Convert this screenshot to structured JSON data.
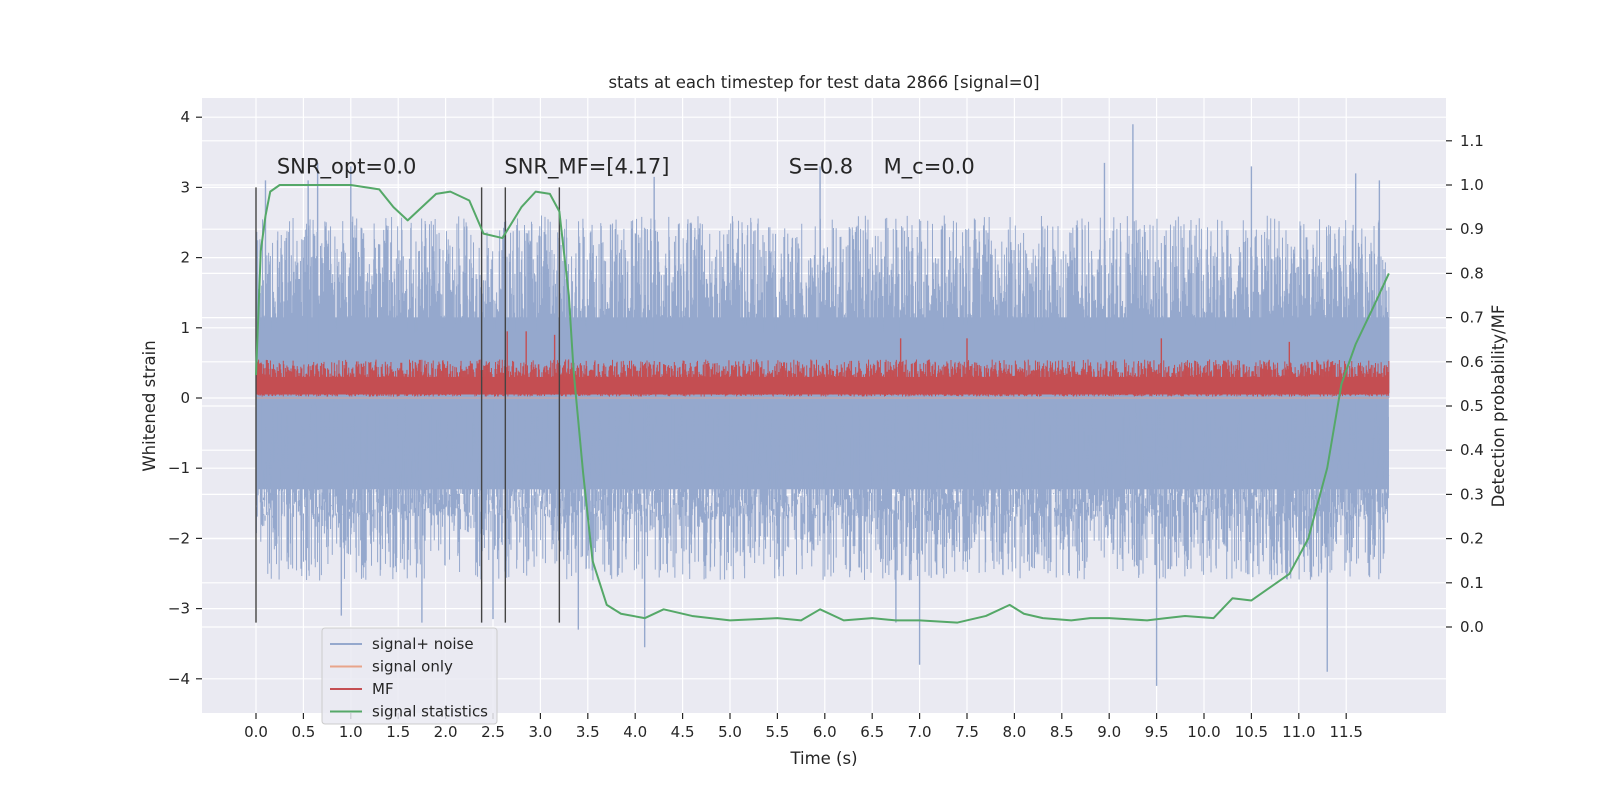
{
  "chart_data": {
    "type": "line",
    "title": "stats at each timestep for test data 2866 [signal=0]",
    "xlabel": "Time (s)",
    "ylabel": "Whitened strain",
    "y2label": "Detection probability/MF",
    "xlim": [
      -0.6,
      12.55
    ],
    "ylim": [
      -4.4,
      4.25
    ],
    "y2lim": [
      -0.2,
      1.2
    ],
    "x_ticks": [
      0.0,
      0.5,
      1.0,
      1.5,
      2.0,
      2.5,
      3.0,
      3.5,
      4.0,
      4.5,
      5.0,
      5.5,
      6.0,
      6.5,
      7.0,
      7.5,
      8.0,
      8.5,
      9.0,
      9.5,
      10.0,
      10.5,
      11.0,
      11.5
    ],
    "x_tick_labels": [
      "0.0",
      "0.5",
      "1.0",
      "1.5",
      "2.0",
      "2.5",
      "3.0",
      "3.5",
      "4.0",
      "4.5",
      "5.0",
      "5.5",
      "6.0",
      "6.5",
      "7.0",
      "7.5",
      "8.0",
      "8.5",
      "9.0",
      "9.5",
      "10.0",
      "10.5",
      "11.0",
      "11.5"
    ],
    "y_ticks": [
      -4,
      -3,
      -2,
      -1,
      0,
      1,
      2,
      3,
      4
    ],
    "y_tick_labels": [
      "−4",
      "−3",
      "−2",
      "−1",
      "0",
      "1",
      "2",
      "3",
      "4"
    ],
    "y2_ticks": [
      0.0,
      0.1,
      0.2,
      0.3,
      0.4,
      0.5,
      0.6,
      0.7,
      0.8,
      0.9,
      1.0,
      1.1
    ],
    "y2_tick_labels": [
      "0.0",
      "0.1",
      "0.2",
      "0.3",
      "0.4",
      "0.5",
      "0.6",
      "0.7",
      "0.8",
      "0.9",
      "1.0",
      "1.1"
    ],
    "grid": true,
    "legend_position": "lower-left",
    "annotations": [
      {
        "text": "SNR_opt=0.0",
        "x": 0.22,
        "y": 3.2
      },
      {
        "text": "SNR_MF=[4.17]",
        "x": 2.62,
        "y": 3.2
      },
      {
        "text": "S=0.8",
        "x": 5.62,
        "y": 3.2
      },
      {
        "text": "M_c=0.0",
        "x": 6.62,
        "y": 3.2
      }
    ],
    "vlines": {
      "x": [
        0.0,
        2.38,
        2.63,
        3.2
      ],
      "y_range": [
        -3.2,
        3.0
      ],
      "color": "#444444"
    },
    "series": [
      {
        "name": "signal+ noise",
        "color": "#95a8cd",
        "axis": "left",
        "kind": "noise-band",
        "x_range": [
          0.0,
          11.95
        ],
        "typical_upper": 2.6,
        "typical_lower": -2.6,
        "spikes": [
          [
            0.1,
            3.1
          ],
          [
            0.55,
            3.1
          ],
          [
            0.65,
            3.35
          ],
          [
            0.9,
            -3.1
          ],
          [
            1.0,
            3.3
          ],
          [
            1.75,
            -3.2
          ],
          [
            2.5,
            -3.15
          ],
          [
            3.4,
            -3.3
          ],
          [
            4.1,
            -3.55
          ],
          [
            4.2,
            3.15
          ],
          [
            5.95,
            3.3
          ],
          [
            6.75,
            -3.2
          ],
          [
            7.0,
            -3.8
          ],
          [
            8.95,
            3.35
          ],
          [
            9.25,
            3.9
          ],
          [
            9.5,
            -4.1
          ],
          [
            10.5,
            3.3
          ],
          [
            11.3,
            -3.9
          ],
          [
            11.6,
            3.2
          ],
          [
            11.85,
            3.1
          ]
        ]
      },
      {
        "name": "signal only",
        "color": "#e8a48a",
        "axis": "left",
        "x": [
          0.0,
          11.95
        ],
        "y": [
          0.0,
          0.0
        ]
      },
      {
        "name": "MF",
        "color": "#c44e52",
        "axis": "left",
        "kind": "noise-band",
        "x_range": [
          0.0,
          11.95
        ],
        "typical_upper": 0.55,
        "typical_lower": 0.0,
        "spikes": [
          [
            2.65,
            0.95
          ],
          [
            2.85,
            0.95
          ],
          [
            3.15,
            0.9
          ],
          [
            6.8,
            0.85
          ],
          [
            7.5,
            0.85
          ],
          [
            9.55,
            0.85
          ],
          [
            10.9,
            0.8
          ]
        ]
      },
      {
        "name": "signal statistics",
        "color": "#55a868",
        "axis": "right",
        "x": [
          0.0,
          0.05,
          0.1,
          0.15,
          0.25,
          0.4,
          0.7,
          1.0,
          1.3,
          1.45,
          1.6,
          1.75,
          1.9,
          2.05,
          2.25,
          2.4,
          2.6,
          2.8,
          2.95,
          3.1,
          3.2,
          3.3,
          3.35,
          3.45,
          3.55,
          3.7,
          3.85,
          4.1,
          4.3,
          4.6,
          5.0,
          5.5,
          5.75,
          5.95,
          6.2,
          6.5,
          6.75,
          7.0,
          7.4,
          7.7,
          7.95,
          8.1,
          8.3,
          8.6,
          8.8,
          9.0,
          9.4,
          9.6,
          9.8,
          10.1,
          10.3,
          10.5,
          10.7,
          10.9,
          11.1,
          11.3,
          11.45,
          11.6,
          11.8,
          11.95
        ],
        "y": [
          0.57,
          0.85,
          0.93,
          0.985,
          1.0,
          1.0,
          1.0,
          1.0,
          0.99,
          0.95,
          0.92,
          0.95,
          0.98,
          0.985,
          0.965,
          0.89,
          0.88,
          0.95,
          0.985,
          0.98,
          0.94,
          0.75,
          0.58,
          0.35,
          0.15,
          0.05,
          0.03,
          0.02,
          0.04,
          0.025,
          0.015,
          0.02,
          0.015,
          0.04,
          0.015,
          0.02,
          0.015,
          0.015,
          0.01,
          0.025,
          0.05,
          0.03,
          0.02,
          0.015,
          0.02,
          0.02,
          0.015,
          0.02,
          0.025,
          0.02,
          0.065,
          0.06,
          0.09,
          0.12,
          0.2,
          0.36,
          0.55,
          0.64,
          0.73,
          0.8
        ]
      }
    ]
  }
}
